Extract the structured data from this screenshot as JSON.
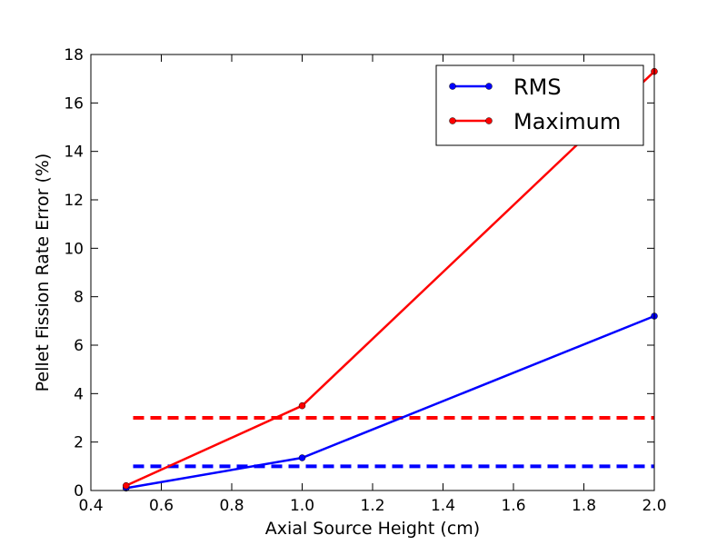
{
  "chart_data": {
    "type": "line",
    "xlabel": "Axial Source Height (cm)",
    "ylabel": "Pellet Fission Rate Error (%)",
    "xlim": [
      0.4,
      2.0
    ],
    "ylim": [
      0,
      18
    ],
    "xticks": [
      "0.4",
      "0.6",
      "0.8",
      "1.0",
      "1.2",
      "1.4",
      "1.6",
      "1.8",
      "2.0"
    ],
    "yticks": [
      "0",
      "2",
      "4",
      "6",
      "8",
      "10",
      "12",
      "14",
      "16",
      "18"
    ],
    "grid": false,
    "legend_position": "top-right",
    "series": [
      {
        "name": "RMS",
        "color": "#0000ff",
        "x": [
          0.5,
          1.0,
          2.0
        ],
        "values": [
          0.1,
          1.35,
          7.2
        ]
      },
      {
        "name": "Maximum",
        "color": "#ff0000",
        "x": [
          0.5,
          1.0,
          2.0
        ],
        "values": [
          0.2,
          3.5,
          17.3
        ]
      }
    ],
    "reference_lines": [
      {
        "color": "#0000ff",
        "y": 1.0,
        "x_range": [
          0.52,
          2.0
        ],
        "style": "dashed"
      },
      {
        "color": "#ff0000",
        "y": 3.0,
        "x_range": [
          0.52,
          2.0
        ],
        "style": "dashed"
      }
    ]
  }
}
